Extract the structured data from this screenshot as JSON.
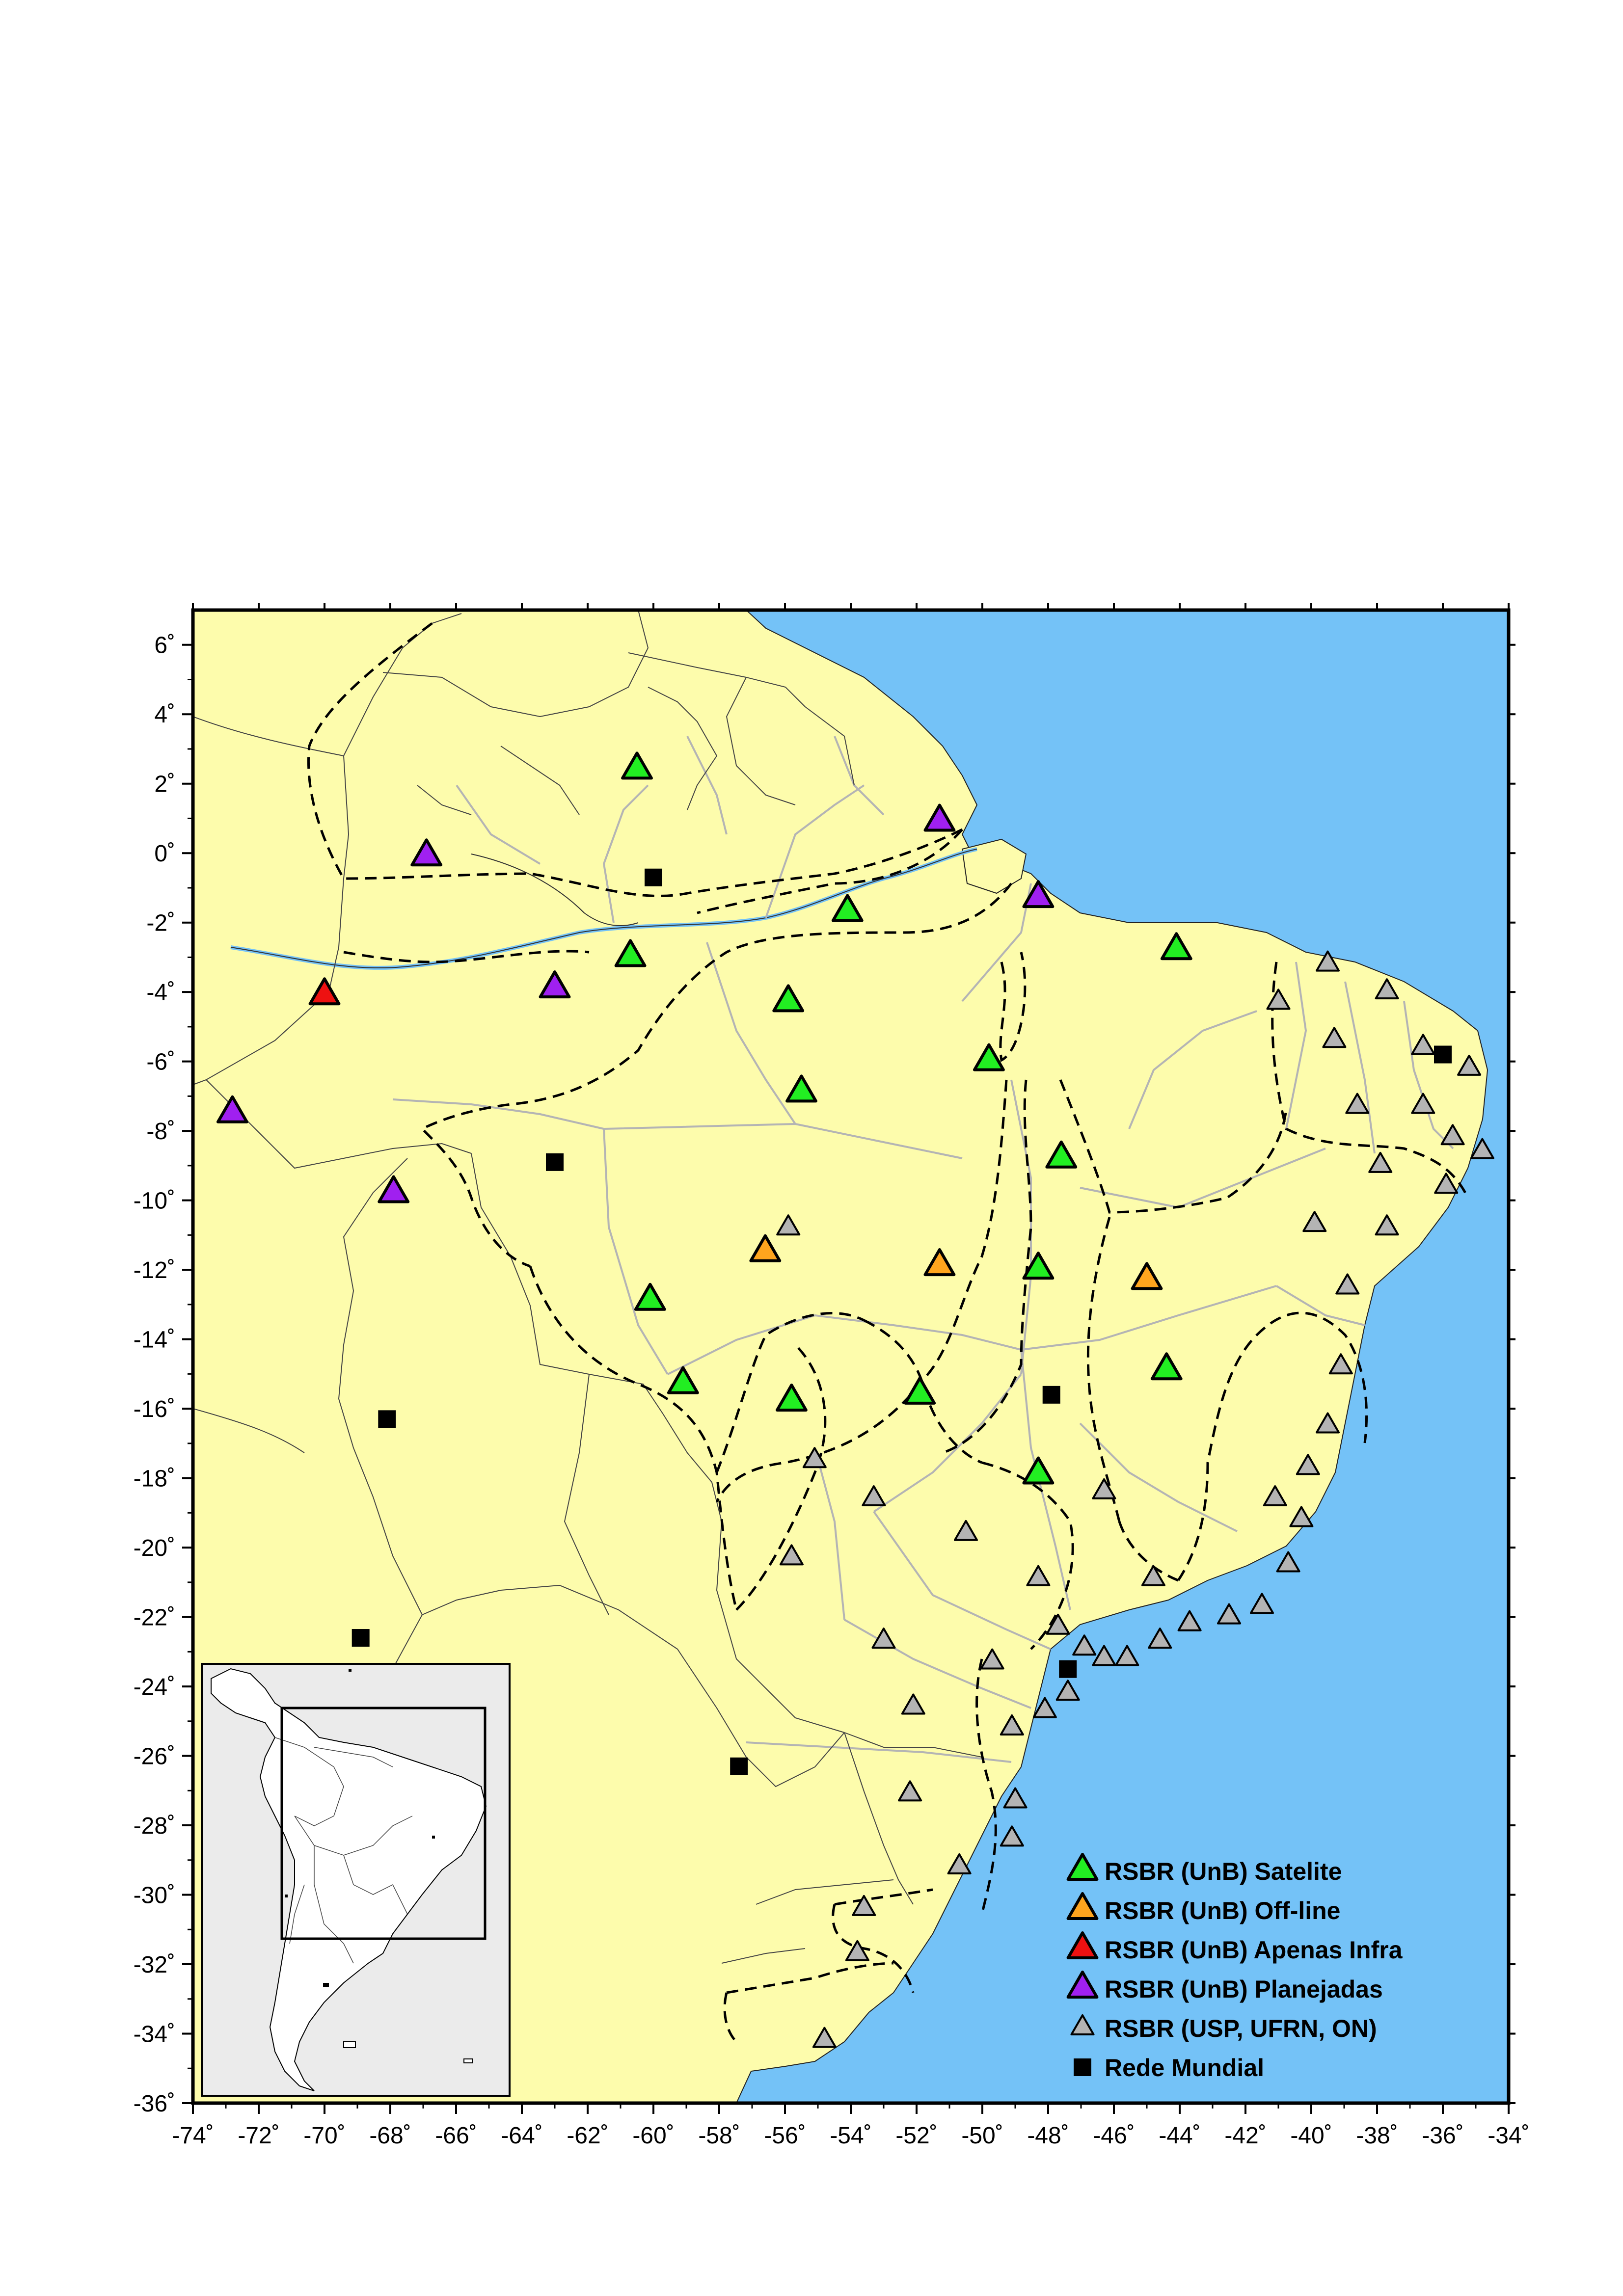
{
  "map": {
    "colors": {
      "ocean": "#74c2f7",
      "land": "#fdfcac",
      "state_border": "#b4b4b4",
      "country_border": "#555555",
      "satelite": "#22ee22",
      "offline": "#ffa51e",
      "apenas_infra": "#ee1111",
      "planejadas": "#a020f0",
      "usp_ufrn_on": "#b4b4b4",
      "rede_mundial": "#000000",
      "inset_land": "#ffffff",
      "inset_bg": "#ebebeb"
    },
    "extent": {
      "lon": [
        -74,
        -34
      ],
      "lat": [
        -36,
        7
      ]
    },
    "x_ticks": [
      "-74˚",
      "-72˚",
      "-70˚",
      "-68˚",
      "-66˚",
      "-64˚",
      "-62˚",
      "-60˚",
      "-58˚",
      "-56˚",
      "-54˚",
      "-52˚",
      "-50˚",
      "-48˚",
      "-46˚",
      "-44˚",
      "-42˚",
      "-40˚",
      "-38˚",
      "-36˚",
      "-34˚"
    ],
    "y_ticks": [
      "6˚",
      "4˚",
      "2˚",
      "0˚",
      "-2˚",
      "-4˚",
      "-6˚",
      "-8˚",
      "-10˚",
      "-12˚",
      "-14˚",
      "-16˚",
      "-18˚",
      "-20˚",
      "-22˚",
      "-24˚",
      "-26˚",
      "-28˚",
      "-30˚",
      "-32˚",
      "-34˚",
      "-36˚"
    ],
    "legend": [
      {
        "key": "satelite",
        "label": "RSBR (UnB) Satelite",
        "symbol": "triangle"
      },
      {
        "key": "offline",
        "label": "RSBR (UnB) Off-line",
        "symbol": "triangle"
      },
      {
        "key": "apenas_infra",
        "label": "RSBR (UnB) Apenas Infra",
        "symbol": "triangle"
      },
      {
        "key": "planejadas",
        "label": "RSBR (UnB) Planejadas",
        "symbol": "triangle"
      },
      {
        "key": "usp_ufrn_on",
        "label": "RSBR (USP, UFRN, ON)",
        "symbol": "small-triangle"
      },
      {
        "key": "rede_mundial",
        "label": "Rede Mundial",
        "symbol": "square"
      }
    ],
    "stations": {
      "satelite": [
        [
          -60.5,
          2.4
        ],
        [
          -54.1,
          -1.7
        ],
        [
          -60.7,
          -3.0
        ],
        [
          -55.9,
          -4.3
        ],
        [
          -55.5,
          -6.9
        ],
        [
          -49.8,
          -6.0
        ],
        [
          -47.6,
          -8.8
        ],
        [
          -44.1,
          -2.8
        ],
        [
          -60.1,
          -12.9
        ],
        [
          -59.1,
          -15.3
        ],
        [
          -55.8,
          -15.8
        ],
        [
          -51.9,
          -15.6
        ],
        [
          -48.3,
          -12.0
        ],
        [
          -48.3,
          -17.9
        ],
        [
          -44.4,
          -14.9
        ]
      ],
      "offline": [
        [
          -56.6,
          -11.5
        ],
        [
          -51.3,
          -11.9
        ],
        [
          -45.0,
          -12.3
        ]
      ],
      "apenas_infra": [
        [
          -70.0,
          -4.1
        ]
      ],
      "planejadas": [
        [
          -66.9,
          -0.1
        ],
        [
          -51.3,
          0.9
        ],
        [
          -48.3,
          -1.3
        ],
        [
          -63.0,
          -3.9
        ],
        [
          -72.8,
          -7.5
        ],
        [
          -67.9,
          -9.8
        ]
      ],
      "usp_ufrn_on": [
        [
          -41.0,
          -4.3
        ],
        [
          -39.5,
          -3.2
        ],
        [
          -37.7,
          -4.0
        ],
        [
          -39.3,
          -5.4
        ],
        [
          -36.6,
          -5.6
        ],
        [
          -35.2,
          -6.2
        ],
        [
          -38.6,
          -7.3
        ],
        [
          -36.6,
          -7.3
        ],
        [
          -35.7,
          -8.2
        ],
        [
          -37.9,
          -9.0
        ],
        [
          -34.8,
          -8.6
        ],
        [
          -35.9,
          -9.6
        ],
        [
          -37.7,
          -10.8
        ],
        [
          -39.9,
          -10.7
        ],
        [
          -38.9,
          -12.5
        ],
        [
          -39.1,
          -14.8
        ],
        [
          -39.5,
          -16.5
        ],
        [
          -40.1,
          -17.7
        ],
        [
          -41.1,
          -18.6
        ],
        [
          -40.3,
          -19.2
        ],
        [
          -40.7,
          -20.5
        ],
        [
          -41.5,
          -21.7
        ],
        [
          -42.5,
          -22.0
        ],
        [
          -43.7,
          -22.2
        ],
        [
          -44.6,
          -22.7
        ],
        [
          -45.6,
          -23.2
        ],
        [
          -46.3,
          -23.2
        ],
        [
          -46.9,
          -22.9
        ],
        [
          -47.7,
          -22.3
        ],
        [
          -48.3,
          -20.9
        ],
        [
          -46.3,
          -18.4
        ],
        [
          -44.8,
          -20.9
        ],
        [
          -50.5,
          -19.6
        ],
        [
          -53.3,
          -18.6
        ],
        [
          -55.1,
          -17.5
        ],
        [
          -55.9,
          -10.8
        ],
        [
          -55.8,
          -20.3
        ],
        [
          -53.0,
          -22.7
        ],
        [
          -49.7,
          -23.3
        ],
        [
          -52.1,
          -24.6
        ],
        [
          -47.4,
          -24.2
        ],
        [
          -48.1,
          -24.7
        ],
        [
          -49.1,
          -25.2
        ],
        [
          -52.2,
          -27.1
        ],
        [
          -49.0,
          -27.3
        ],
        [
          -49.1,
          -28.4
        ],
        [
          -50.7,
          -29.2
        ],
        [
          -53.6,
          -30.4
        ],
        [
          -53.8,
          -31.7
        ],
        [
          -54.8,
          -34.2
        ]
      ],
      "rede_mundial": [
        [
          -60.0,
          -0.7
        ],
        [
          -36.0,
          -5.8
        ],
        [
          -63.0,
          -8.9
        ],
        [
          -68.1,
          -16.3
        ],
        [
          -47.9,
          -15.6
        ],
        [
          -68.9,
          -22.6
        ],
        [
          -47.4,
          -23.5
        ],
        [
          -57.4,
          -26.3
        ]
      ]
    }
  }
}
